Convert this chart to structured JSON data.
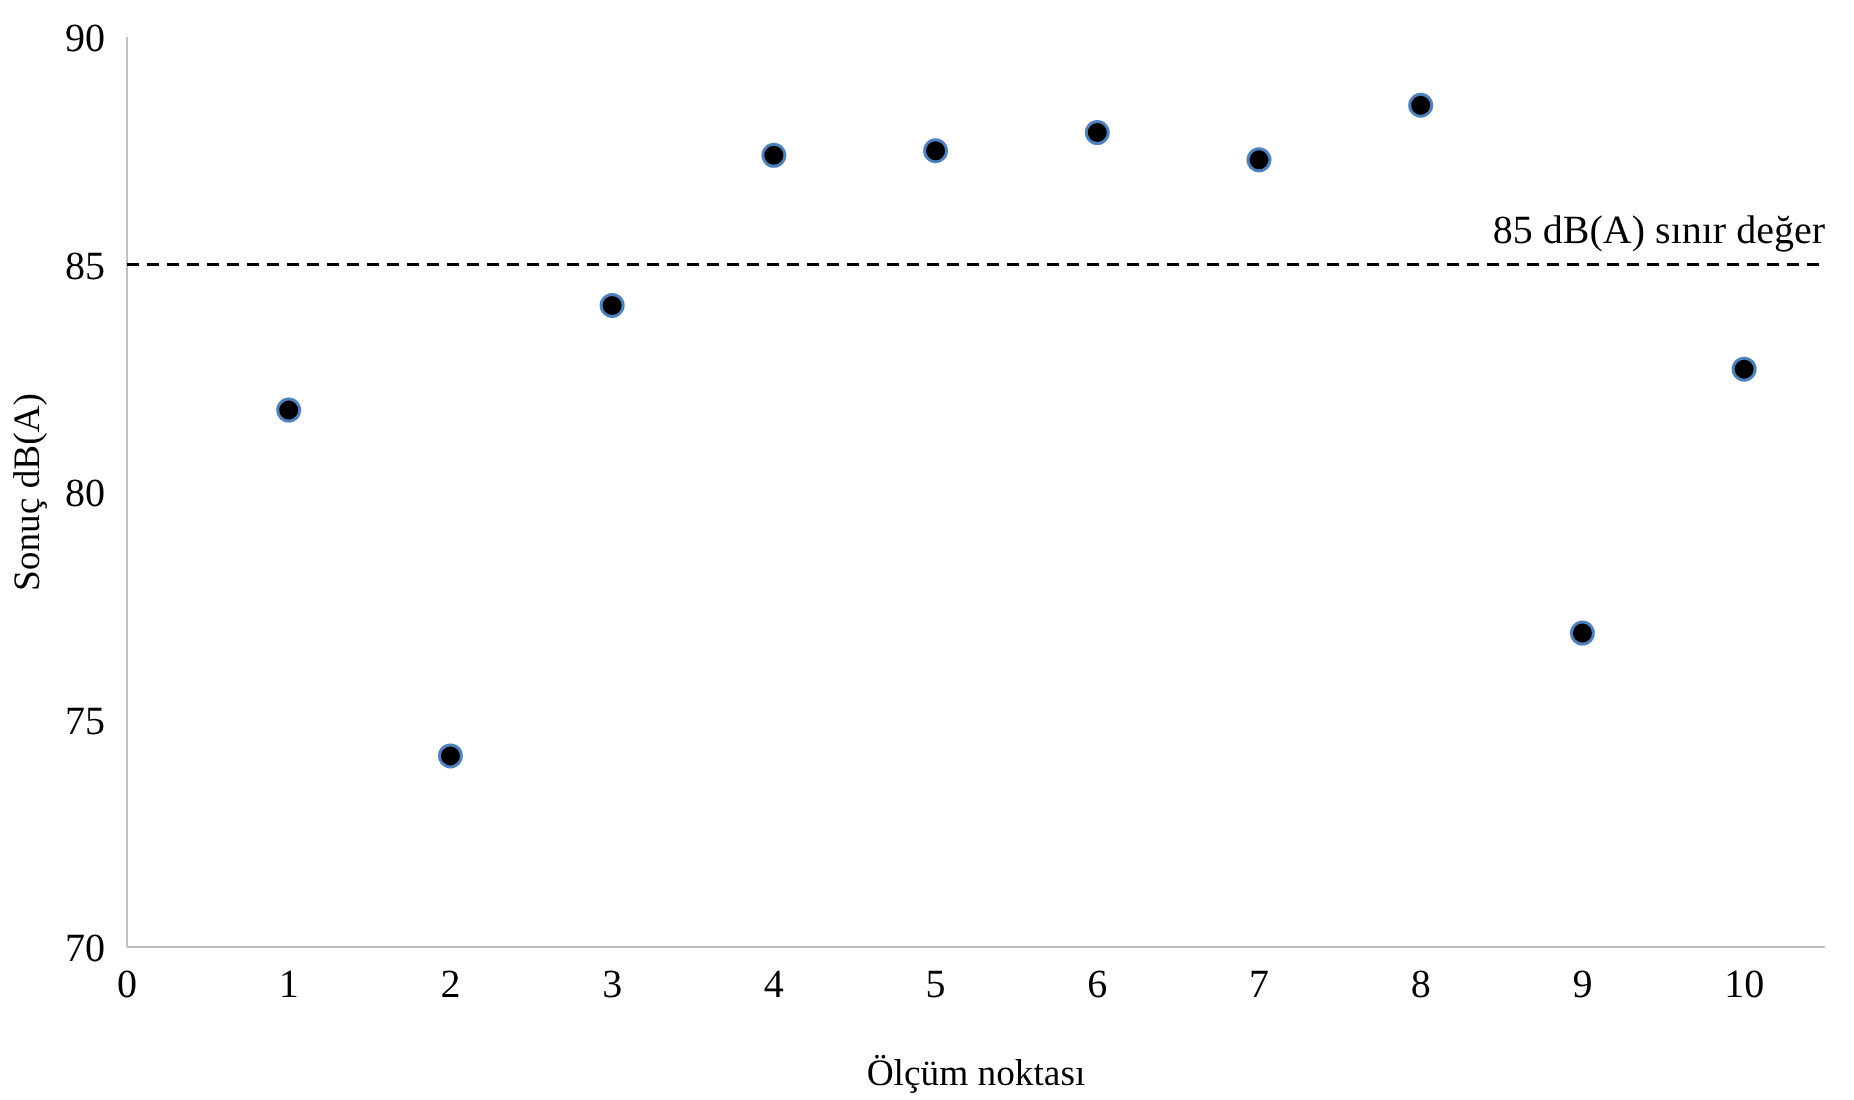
{
  "chart_data": {
    "type": "scatter",
    "xlabel": "Ölçüm noktası",
    "ylabel": "Sonuç dB(A)",
    "x": [
      1,
      2,
      3,
      4,
      5,
      6,
      7,
      8,
      9,
      10
    ],
    "series": [
      {
        "color": "#000000",
        "values": [
          81.8,
          74.2,
          84.1,
          87.4,
          87.5,
          87.9,
          87.3,
          88.5,
          76.9,
          82.7
        ]
      }
    ],
    "xlim": [
      0,
      10.5
    ],
    "xticks": [
      0,
      1,
      2,
      3,
      4,
      5,
      6,
      7,
      8,
      9,
      10
    ],
    "ylim": [
      70,
      90
    ],
    "yticks": [
      70,
      75,
      80,
      85,
      90
    ],
    "ref_lines": [
      {
        "axis": "y",
        "value": 85,
        "label": "85 dB(A) sınır değer",
        "color": "#000000",
        "line_style": "dashed"
      }
    ],
    "grid": false,
    "marker": "circle"
  }
}
